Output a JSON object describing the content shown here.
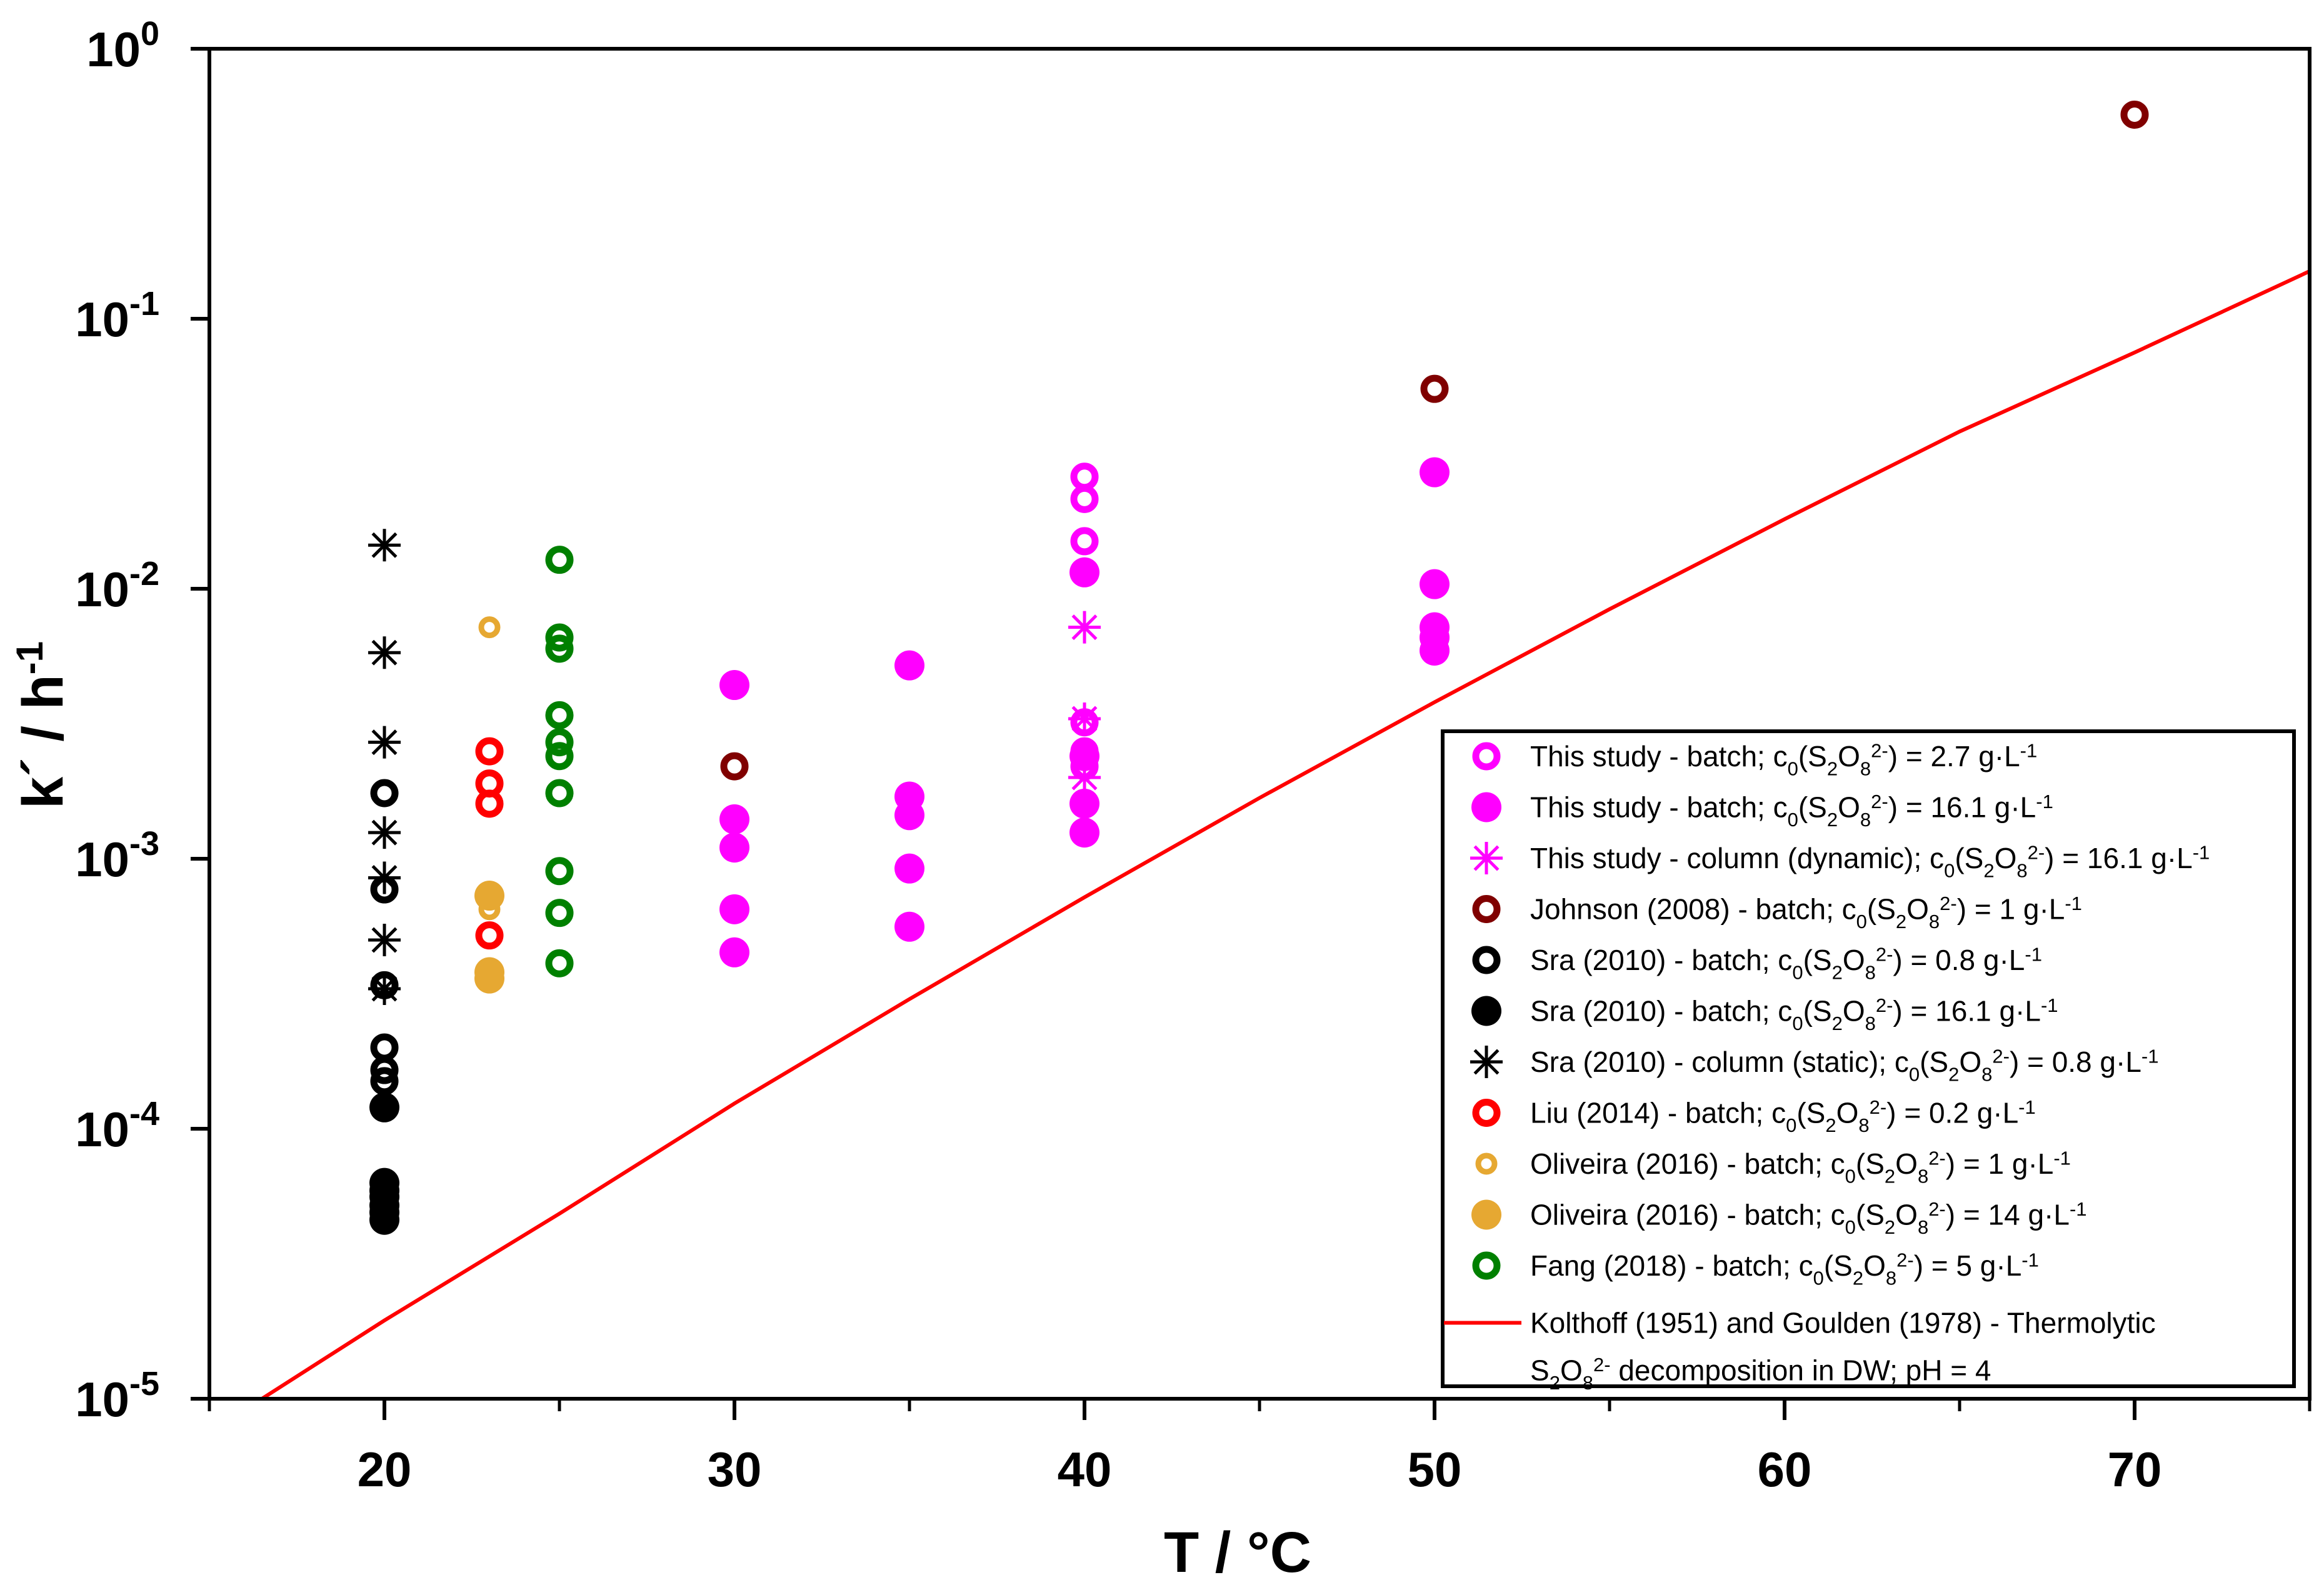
{
  "chart_data": {
    "type": "scatter",
    "title": "",
    "xlabel": "T / °C",
    "ylabel": "k´ / h",
    "ylabel_sup": "-1",
    "xlim": [
      15,
      75
    ],
    "ylim": [
      1e-05,
      1
    ],
    "yscale": "log",
    "grid": false,
    "legend_position": "bottom-right",
    "x_ticks": [
      {
        "value": 20,
        "label": "20"
      },
      {
        "value": 30,
        "label": "30"
      },
      {
        "value": 40,
        "label": "40"
      },
      {
        "value": 50,
        "label": "50"
      },
      {
        "value": 60,
        "label": "60"
      },
      {
        "value": 70,
        "label": "70"
      }
    ],
    "y_ticks": [
      {
        "value": 1,
        "base": "10",
        "exp": "0"
      },
      {
        "value": 0.1,
        "base": "10",
        "exp": "-1"
      },
      {
        "value": 0.01,
        "base": "10",
        "exp": "-2"
      },
      {
        "value": 0.001,
        "base": "10",
        "exp": "-3"
      },
      {
        "value": 0.0001,
        "base": "10",
        "exp": "-4"
      },
      {
        "value": 1e-05,
        "base": "10",
        "exp": "-5"
      }
    ],
    "series": [
      {
        "name": "This study - batch; c0(S2O8 2-) = 2.7 g·L-1",
        "marker": "open-circle",
        "color": "#ff00ff",
        "x": [
          40,
          40,
          40,
          40,
          40,
          40
        ],
        "y": [
          0.026,
          0.0215,
          0.015,
          0.0032,
          0.0025,
          0.0022
        ],
        "label": [
          {
            "t": "This study - batch; c"
          },
          {
            "t": "0",
            "s": "sub"
          },
          {
            "t": "(S"
          },
          {
            "t": "2",
            "s": "sub"
          },
          {
            "t": "O"
          },
          {
            "t": "8",
            "s": "sub"
          },
          {
            "t": "2-",
            "s": "sup"
          },
          {
            "t": ") = 2.7 g·L"
          },
          {
            "t": "-1",
            "s": "sup"
          }
        ]
      },
      {
        "name": "This study - batch; c0(S2O8 2-) = 16.1 g·L-1",
        "marker": "filled-circle",
        "color": "#ff00ff",
        "x": [
          30,
          30,
          30,
          30,
          30,
          35,
          35,
          35,
          35,
          35,
          40,
          40,
          40,
          40,
          50,
          50,
          50,
          50,
          50
        ],
        "y": [
          0.0044,
          0.0014,
          0.0011,
          0.00065,
          0.00045,
          0.0052,
          0.0017,
          0.00145,
          0.00092,
          0.00056,
          0.0115,
          0.0024,
          0.0016,
          0.00125,
          0.027,
          0.0104,
          0.0072,
          0.0066,
          0.0059
        ],
        "label": [
          {
            "t": "This study - batch; c"
          },
          {
            "t": "0",
            "s": "sub"
          },
          {
            "t": "(S"
          },
          {
            "t": "2",
            "s": "sub"
          },
          {
            "t": "O"
          },
          {
            "t": "8",
            "s": "sub"
          },
          {
            "t": "2-",
            "s": "sup"
          },
          {
            "t": ") = 16.1 g·L"
          },
          {
            "t": "-1",
            "s": "sup"
          }
        ]
      },
      {
        "name": "This study - column (dynamic); c0(S2O8 2-) = 16.1 g·L-1",
        "marker": "asterisk",
        "color": "#ff00ff",
        "x": [
          40,
          40,
          40
        ],
        "y": [
          0.0072,
          0.0033,
          0.002
        ],
        "label": [
          {
            "t": "This study - column (dynamic); c"
          },
          {
            "t": "0",
            "s": "sub"
          },
          {
            "t": "(S"
          },
          {
            "t": "2",
            "s": "sub"
          },
          {
            "t": "O"
          },
          {
            "t": "8",
            "s": "sub"
          },
          {
            "t": "2-",
            "s": "sup"
          },
          {
            "t": ") = 16.1 g·L"
          },
          {
            "t": "-1",
            "s": "sup"
          }
        ]
      },
      {
        "name": "Johnson (2008) - batch; c0(S2O8 2-) = 1 g·L-1",
        "marker": "open-circle",
        "color": "#800000",
        "x": [
          30,
          50,
          70
        ],
        "y": [
          0.0022,
          0.055,
          0.57
        ],
        "label": [
          {
            "t": "Johnson (2008) - batch; c"
          },
          {
            "t": "0",
            "s": "sub"
          },
          {
            "t": "(S"
          },
          {
            "t": "2",
            "s": "sub"
          },
          {
            "t": "O"
          },
          {
            "t": "8",
            "s": "sub"
          },
          {
            "t": "2-",
            "s": "sup"
          },
          {
            "t": ") = 1 g·L"
          },
          {
            "t": "-1",
            "s": "sup"
          }
        ]
      },
      {
        "name": "Sra (2010) - batch; c0(S2O8 2-) = 0.8 g·L-1",
        "marker": "open-circle",
        "color": "#000000",
        "x": [
          20,
          20,
          20,
          20,
          20,
          20
        ],
        "y": [
          0.00175,
          0.00077,
          0.00034,
          0.0002,
          0.000165,
          0.00015
        ],
        "label": [
          {
            "t": "Sra (2010) - batch; c"
          },
          {
            "t": "0",
            "s": "sub"
          },
          {
            "t": "(S"
          },
          {
            "t": "2",
            "s": "sub"
          },
          {
            "t": "O"
          },
          {
            "t": "8",
            "s": "sub"
          },
          {
            "t": "2-",
            "s": "sup"
          },
          {
            "t": ") = 0.8 g·L"
          },
          {
            "t": "-1",
            "s": "sup"
          }
        ]
      },
      {
        "name": "Sra (2010) - batch; c0(S2O8 2-) = 16.1 g·L-1",
        "marker": "filled-circle",
        "color": "#000000",
        "x": [
          20,
          20,
          20,
          20,
          20,
          20,
          20
        ],
        "y": [
          0.00012,
          6.3e-05,
          5.9e-05,
          5.6e-05,
          5.2e-05,
          4.9e-05,
          4.6e-05
        ],
        "label": [
          {
            "t": "Sra (2010) - batch; c"
          },
          {
            "t": "0",
            "s": "sub"
          },
          {
            "t": "(S"
          },
          {
            "t": "2",
            "s": "sub"
          },
          {
            "t": "O"
          },
          {
            "t": "8",
            "s": "sub"
          },
          {
            "t": "2-",
            "s": "sup"
          },
          {
            "t": ") = 16.1 g·L"
          },
          {
            "t": "-1",
            "s": "sup"
          }
        ]
      },
      {
        "name": "Sra (2010) - column (static); c0(S2O8 2-) = 0.8 g·L-1",
        "marker": "asterisk",
        "color": "#000000",
        "x": [
          20,
          20,
          20,
          20,
          20,
          20,
          20
        ],
        "y": [
          0.0145,
          0.0058,
          0.0027,
          0.00125,
          0.00085,
          0.0005,
          0.00033
        ],
        "label": [
          {
            "t": "Sra (2010) - column (static); c"
          },
          {
            "t": "0",
            "s": "sub"
          },
          {
            "t": "(S"
          },
          {
            "t": "2",
            "s": "sub"
          },
          {
            "t": "O"
          },
          {
            "t": "8",
            "s": "sub"
          },
          {
            "t": "2-",
            "s": "sup"
          },
          {
            "t": ") = 0.8 g·L"
          },
          {
            "t": "-1",
            "s": "sup"
          }
        ]
      },
      {
        "name": "Liu (2014) - batch; c0(S2O8 2-) = 0.2 g·L-1",
        "marker": "open-circle",
        "color": "#ff0000",
        "x": [
          23,
          23,
          23,
          23
        ],
        "y": [
          0.0025,
          0.0019,
          0.0016,
          0.00052
        ],
        "label": [
          {
            "t": "Liu (2014) - batch; c"
          },
          {
            "t": "0",
            "s": "sub"
          },
          {
            "t": "(S"
          },
          {
            "t": "2",
            "s": "sub"
          },
          {
            "t": "O"
          },
          {
            "t": "8",
            "s": "sub"
          },
          {
            "t": "2-",
            "s": "sup"
          },
          {
            "t": ") = 0.2 g·L"
          },
          {
            "t": "-1",
            "s": "sup"
          }
        ]
      },
      {
        "name": "Oliveira (2016) - batch; c0(S2O8 2-) = 1 g·L-1",
        "marker": "open-circle-small",
        "color": "#e6a832",
        "x": [
          23,
          23
        ],
        "y": [
          0.0072,
          0.00065
        ],
        "label": [
          {
            "t": "Oliveira (2016) - batch; c"
          },
          {
            "t": "0",
            "s": "sub"
          },
          {
            "t": "(S"
          },
          {
            "t": "2",
            "s": "sub"
          },
          {
            "t": "O"
          },
          {
            "t": "8",
            "s": "sub"
          },
          {
            "t": "2-",
            "s": "sup"
          },
          {
            "t": ") = 1 g·L"
          },
          {
            "t": "-1",
            "s": "sup"
          }
        ]
      },
      {
        "name": "Oliveira (2016) - batch; c0(S2O8 2-) = 14 g·L-1",
        "marker": "filled-circle",
        "color": "#e6a832",
        "x": [
          23,
          23,
          23
        ],
        "y": [
          0.00073,
          0.00038,
          0.00036
        ],
        "label": [
          {
            "t": "Oliveira (2016) - batch;  c"
          },
          {
            "t": "0",
            "s": "sub"
          },
          {
            "t": "(S"
          },
          {
            "t": "2",
            "s": "sub"
          },
          {
            "t": "O"
          },
          {
            "t": "8",
            "s": "sub"
          },
          {
            "t": "2-",
            "s": "sup"
          },
          {
            "t": ") = 14 g·L"
          },
          {
            "t": "-1",
            "s": "sup"
          }
        ]
      },
      {
        "name": "Fang (2018) - batch; c0(S2O8 2-) = 5 g·L-1",
        "marker": "open-circle",
        "color": "#008000",
        "x": [
          25,
          25,
          25,
          25,
          25,
          25,
          25,
          25,
          25,
          25
        ],
        "y": [
          0.0128,
          0.0066,
          0.006,
          0.0034,
          0.0027,
          0.0024,
          0.00175,
          0.0009,
          0.00063,
          0.00041
        ],
        "label": [
          {
            "t": "Fang (2018) - batch; c"
          },
          {
            "t": "0",
            "s": "sub"
          },
          {
            "t": "(S"
          },
          {
            "t": "2",
            "s": "sub"
          },
          {
            "t": "O"
          },
          {
            "t": "8",
            "s": "sub"
          },
          {
            "t": "2-",
            "s": "sup"
          },
          {
            "t": ") = 5 g·L"
          },
          {
            "t": "-1",
            "s": "sup"
          }
        ]
      },
      {
        "name": "Kolthoff (1951) and Goulden (1978) - Thermolytic S2O8 2- decomposition in DW; pH = 4",
        "marker": "line",
        "color": "#ff0000",
        "x": [
          16.5,
          20,
          25,
          30,
          35,
          40,
          45,
          50,
          55,
          60,
          65,
          70,
          75
        ],
        "y": [
          1e-05,
          1.95e-05,
          4.85e-05,
          0.000124,
          0.000302,
          0.00072,
          0.00168,
          0.0038,
          0.0084,
          0.0181,
          0.0382,
          0.075,
          0.15
        ],
        "label_lines": [
          [
            {
              "t": "Kolthoff (1951) and Goulden (1978) - Thermolytic"
            }
          ],
          [
            {
              "t": "S"
            },
            {
              "t": "2",
              "s": "sub"
            },
            {
              "t": "O"
            },
            {
              "t": "8",
              "s": "sub"
            },
            {
              "t": "2-",
              "s": "sup"
            },
            {
              "t": " decomposition in DW; pH = 4"
            }
          ]
        ]
      }
    ]
  }
}
